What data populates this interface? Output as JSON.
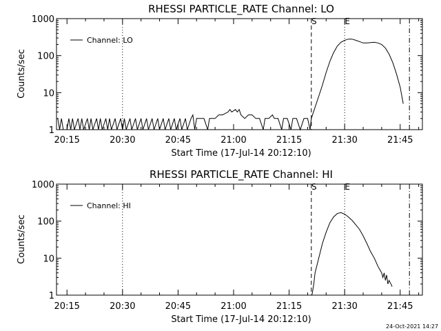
{
  "footer_timestamp": "24-Oct-2021 14:27",
  "chart_data": [
    {
      "type": "line",
      "title": "RHESSI PARTICLE_RATE Channel: LO",
      "xlabel": "Start Time (17-Jul-14 20:12:10)",
      "ylabel": "Counts/sec",
      "y_scale": "log",
      "ylim": [
        1,
        1000
      ],
      "y_ticks": [
        1,
        10,
        100,
        1000
      ],
      "y_tick_labels": [
        "1",
        "10",
        "100",
        "1000"
      ],
      "xlim": [
        "20:12:10",
        "21:51:00"
      ],
      "x_ticks": [
        "20:15",
        "20:30",
        "20:45",
        "21:00",
        "21:15",
        "21:30",
        "21:45"
      ],
      "legend": "top-left",
      "series": [
        {
          "name": "Channel: LO",
          "points": [
            [
              "20:12:30",
              2
            ],
            [
              "20:13:00",
              1
            ],
            [
              "20:13:30",
              2
            ],
            [
              "20:14:00",
              1
            ],
            [
              "20:15:00",
              1
            ],
            [
              "20:15:30",
              2
            ],
            [
              "20:16:00",
              1
            ],
            [
              "20:16:30",
              2
            ],
            [
              "20:17:00",
              1
            ],
            [
              "20:18:00",
              2
            ],
            [
              "20:18:30",
              1
            ],
            [
              "20:19:00",
              2
            ],
            [
              "20:19:30",
              1
            ],
            [
              "20:20:30",
              2
            ],
            [
              "20:21:00",
              1
            ],
            [
              "20:21:30",
              2
            ],
            [
              "20:22:00",
              1
            ],
            [
              "20:23:00",
              2
            ],
            [
              "20:23:30",
              1
            ],
            [
              "20:24:00",
              2
            ],
            [
              "20:24:30",
              1
            ],
            [
              "20:25:30",
              2
            ],
            [
              "20:26:00",
              1
            ],
            [
              "20:26:30",
              2
            ],
            [
              "20:27:00",
              1
            ],
            [
              "20:28:00",
              2
            ],
            [
              "20:28:30",
              1
            ],
            [
              "20:29:30",
              2
            ],
            [
              "20:30:00",
              1
            ],
            [
              "20:30:30",
              2
            ],
            [
              "20:31:00",
              1
            ],
            [
              "20:32:00",
              2
            ],
            [
              "20:32:30",
              1
            ],
            [
              "20:33:30",
              2
            ],
            [
              "20:34:00",
              1
            ],
            [
              "20:35:00",
              2
            ],
            [
              "20:35:30",
              1
            ],
            [
              "20:36:30",
              2
            ],
            [
              "20:37:00",
              1
            ],
            [
              "20:38:00",
              2
            ],
            [
              "20:38:30",
              1
            ],
            [
              "20:39:30",
              2
            ],
            [
              "20:40:00",
              1
            ],
            [
              "20:41:00",
              2
            ],
            [
              "20:41:30",
              1
            ],
            [
              "20:42:30",
              2
            ],
            [
              "20:43:00",
              1
            ],
            [
              "20:44:00",
              2
            ],
            [
              "20:44:30",
              1
            ],
            [
              "20:45:30",
              2
            ],
            [
              "20:46:00",
              1
            ],
            [
              "20:47:00",
              2
            ],
            [
              "20:47:30",
              1
            ],
            [
              "20:48:30",
              2
            ],
            [
              "20:49:00",
              2.5
            ],
            [
              "20:49:30",
              1
            ],
            [
              "20:50:00",
              2
            ],
            [
              "20:51:00",
              2
            ],
            [
              "20:52:00",
              2
            ],
            [
              "20:53:00",
              1
            ],
            [
              "20:53:30",
              2
            ],
            [
              "20:55:00",
              2
            ],
            [
              "20:56:00",
              2.5
            ],
            [
              "20:57:00",
              2.5
            ],
            [
              "20:58:30",
              3
            ],
            [
              "20:59:00",
              3.5
            ],
            [
              "20:59:30",
              3
            ],
            [
              "21:00:30",
              3.5
            ],
            [
              "21:01:00",
              3
            ],
            [
              "21:01:30",
              3.5
            ],
            [
              "21:02:00",
              2.5
            ],
            [
              "21:03:00",
              2
            ],
            [
              "21:04:00",
              2.5
            ],
            [
              "21:05:00",
              2.5
            ],
            [
              "21:06:00",
              2
            ],
            [
              "21:07:00",
              2
            ],
            [
              "21:08:00",
              1
            ],
            [
              "21:08:30",
              2
            ],
            [
              "21:09:30",
              2
            ],
            [
              "21:10:30",
              2.5
            ],
            [
              "21:11:00",
              2
            ],
            [
              "21:12:00",
              2
            ],
            [
              "21:13:00",
              1
            ],
            [
              "21:13:30",
              2
            ],
            [
              "21:14:30",
              2
            ],
            [
              "21:15:30",
              1
            ],
            [
              "21:16:00",
              2
            ],
            [
              "21:17:00",
              2
            ],
            [
              "21:18:00",
              1
            ],
            [
              "21:19:00",
              2
            ],
            [
              "21:20:00",
              2
            ],
            [
              "21:20:40",
              1
            ],
            [
              "21:21:00",
              2
            ],
            [
              "21:22:00",
              4
            ],
            [
              "21:23:00",
              8
            ],
            [
              "21:24:00",
              16
            ],
            [
              "21:25:00",
              35
            ],
            [
              "21:26:00",
              70
            ],
            [
              "21:27:00",
              120
            ],
            [
              "21:28:00",
              180
            ],
            [
              "21:29:00",
              230
            ],
            [
              "21:30:00",
              260
            ],
            [
              "21:31:00",
              280
            ],
            [
              "21:32:00",
              280
            ],
            [
              "21:33:00",
              260
            ],
            [
              "21:34:00",
              240
            ],
            [
              "21:35:00",
              220
            ],
            [
              "21:36:00",
              220
            ],
            [
              "21:37:00",
              225
            ],
            [
              "21:38:00",
              230
            ],
            [
              "21:39:00",
              220
            ],
            [
              "21:40:00",
              200
            ],
            [
              "21:41:00",
              160
            ],
            [
              "21:42:00",
              110
            ],
            [
              "21:43:00",
              65
            ],
            [
              "21:44:00",
              32
            ],
            [
              "21:45:00",
              14
            ],
            [
              "21:45:50",
              5
            ]
          ]
        }
      ],
      "markers": [
        {
          "label": "S",
          "time": "21:21:00",
          "style": "dashed"
        },
        {
          "label": "E",
          "time": "21:30:00",
          "style": "dotted"
        },
        {
          "label": "",
          "time": "20:30:00",
          "style": "dotted"
        },
        {
          "label": "",
          "time": "21:47:30",
          "style": "dashdot"
        }
      ]
    },
    {
      "type": "line",
      "title": "RHESSI PARTICLE_RATE Channel: HI",
      "xlabel": "Start Time (17-Jul-14 20:12:10)",
      "ylabel": "Counts/sec",
      "y_scale": "log",
      "ylim": [
        1,
        1000
      ],
      "y_ticks": [
        1,
        10,
        100,
        1000
      ],
      "y_tick_labels": [
        "1",
        "10",
        "100",
        "1000"
      ],
      "xlim": [
        "20:12:10",
        "21:51:00"
      ],
      "x_ticks": [
        "20:15",
        "20:30",
        "20:45",
        "21:00",
        "21:15",
        "21:30",
        "21:45"
      ],
      "legend": "top-left",
      "series": [
        {
          "name": "Channel: HI",
          "points": [
            [
              "21:21:10",
              1
            ],
            [
              "21:21:40",
              2
            ],
            [
              "21:22:00",
              4
            ],
            [
              "21:23:00",
              10
            ],
            [
              "21:24:00",
              25
            ],
            [
              "21:25:00",
              50
            ],
            [
              "21:26:00",
              90
            ],
            [
              "21:27:00",
              130
            ],
            [
              "21:28:00",
              160
            ],
            [
              "21:29:00",
              170
            ],
            [
              "21:30:00",
              155
            ],
            [
              "21:31:00",
              130
            ],
            [
              "21:32:00",
              105
            ],
            [
              "21:33:00",
              80
            ],
            [
              "21:34:00",
              60
            ],
            [
              "21:35:00",
              40
            ],
            [
              "21:36:00",
              25
            ],
            [
              "21:37:00",
              15
            ],
            [
              "21:38:00",
              10
            ],
            [
              "21:39:00",
              6
            ],
            [
              "21:40:00",
              4
            ],
            [
              "21:40:20",
              3
            ],
            [
              "21:40:40",
              4
            ],
            [
              "21:41:00",
              2.5
            ],
            [
              "21:41:20",
              3.5
            ],
            [
              "21:41:40",
              2
            ],
            [
              "21:42:00",
              2.5
            ],
            [
              "21:42:30",
              2
            ],
            [
              "21:42:50",
              1.7
            ]
          ]
        }
      ],
      "markers": [
        {
          "label": "S",
          "time": "21:21:00",
          "style": "dashed"
        },
        {
          "label": "E",
          "time": "21:30:00",
          "style": "dotted"
        },
        {
          "label": "",
          "time": "20:30:00",
          "style": "dotted"
        },
        {
          "label": "",
          "time": "21:47:30",
          "style": "dashdot"
        }
      ]
    }
  ]
}
